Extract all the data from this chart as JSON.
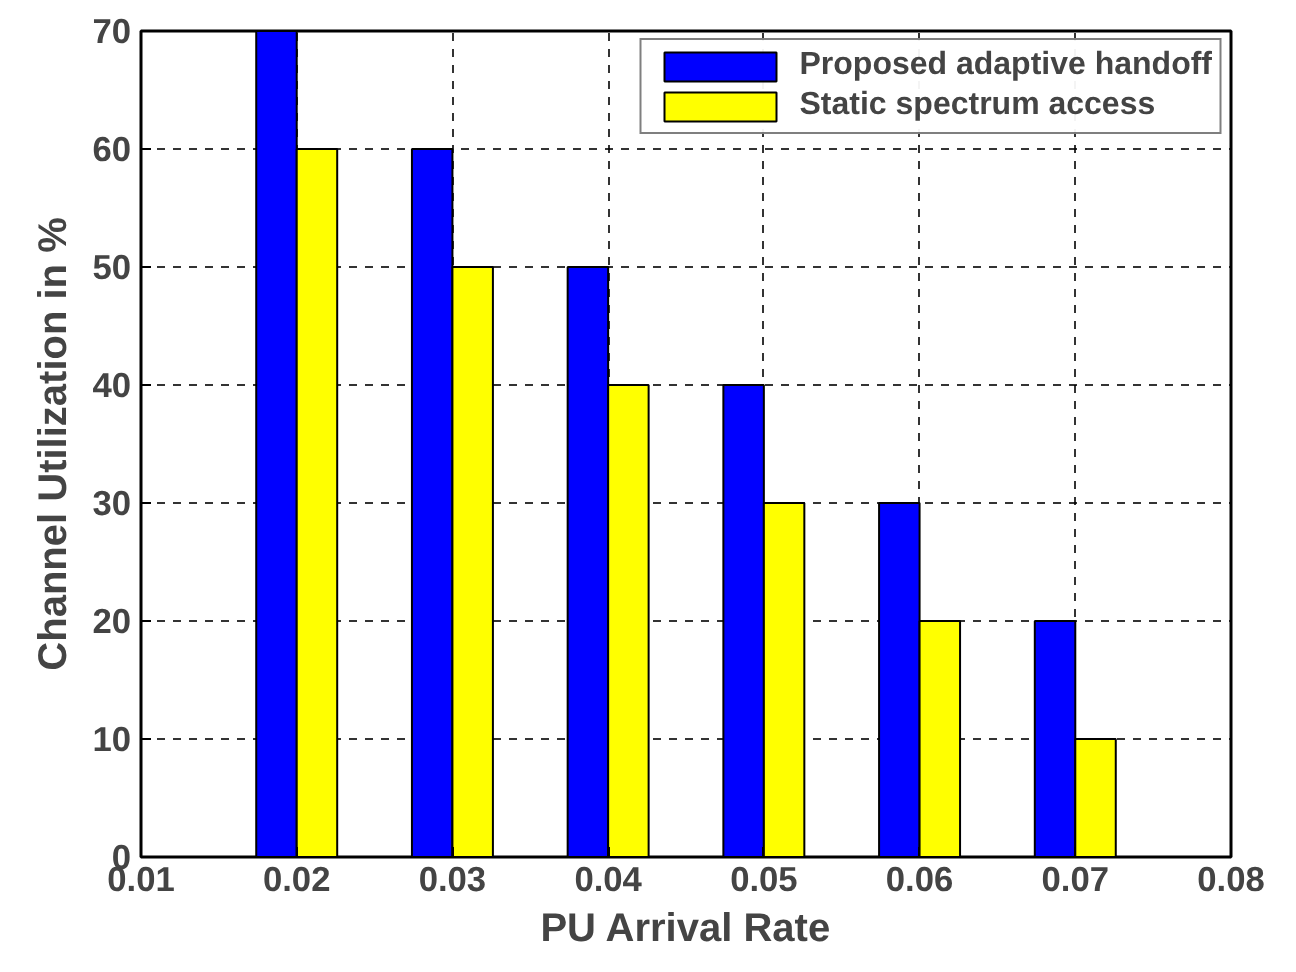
{
  "chart_data": {
    "type": "bar",
    "xlabel": "PU Arrival Rate",
    "ylabel": "Channel Utilization in %",
    "x": [
      0.02,
      0.03,
      0.04,
      0.05,
      0.06,
      0.07
    ],
    "series": [
      {
        "name": "Proposed adaptive handoff",
        "color": "#0000ff",
        "values": [
          70,
          60,
          50,
          40,
          30,
          20
        ]
      },
      {
        "name": "Static spectrum access",
        "color": "#ffff00",
        "values": [
          60,
          50,
          40,
          30,
          20,
          10
        ]
      }
    ],
    "xlim": [
      0.01,
      0.08
    ],
    "xticks": [
      0.01,
      0.02,
      0.03,
      0.04,
      0.05,
      0.06,
      0.07,
      0.08
    ],
    "ylim": [
      0,
      70
    ],
    "yticks": [
      0,
      10,
      20,
      30,
      40,
      50,
      60,
      70
    ],
    "grid": true,
    "legend": "top right"
  }
}
